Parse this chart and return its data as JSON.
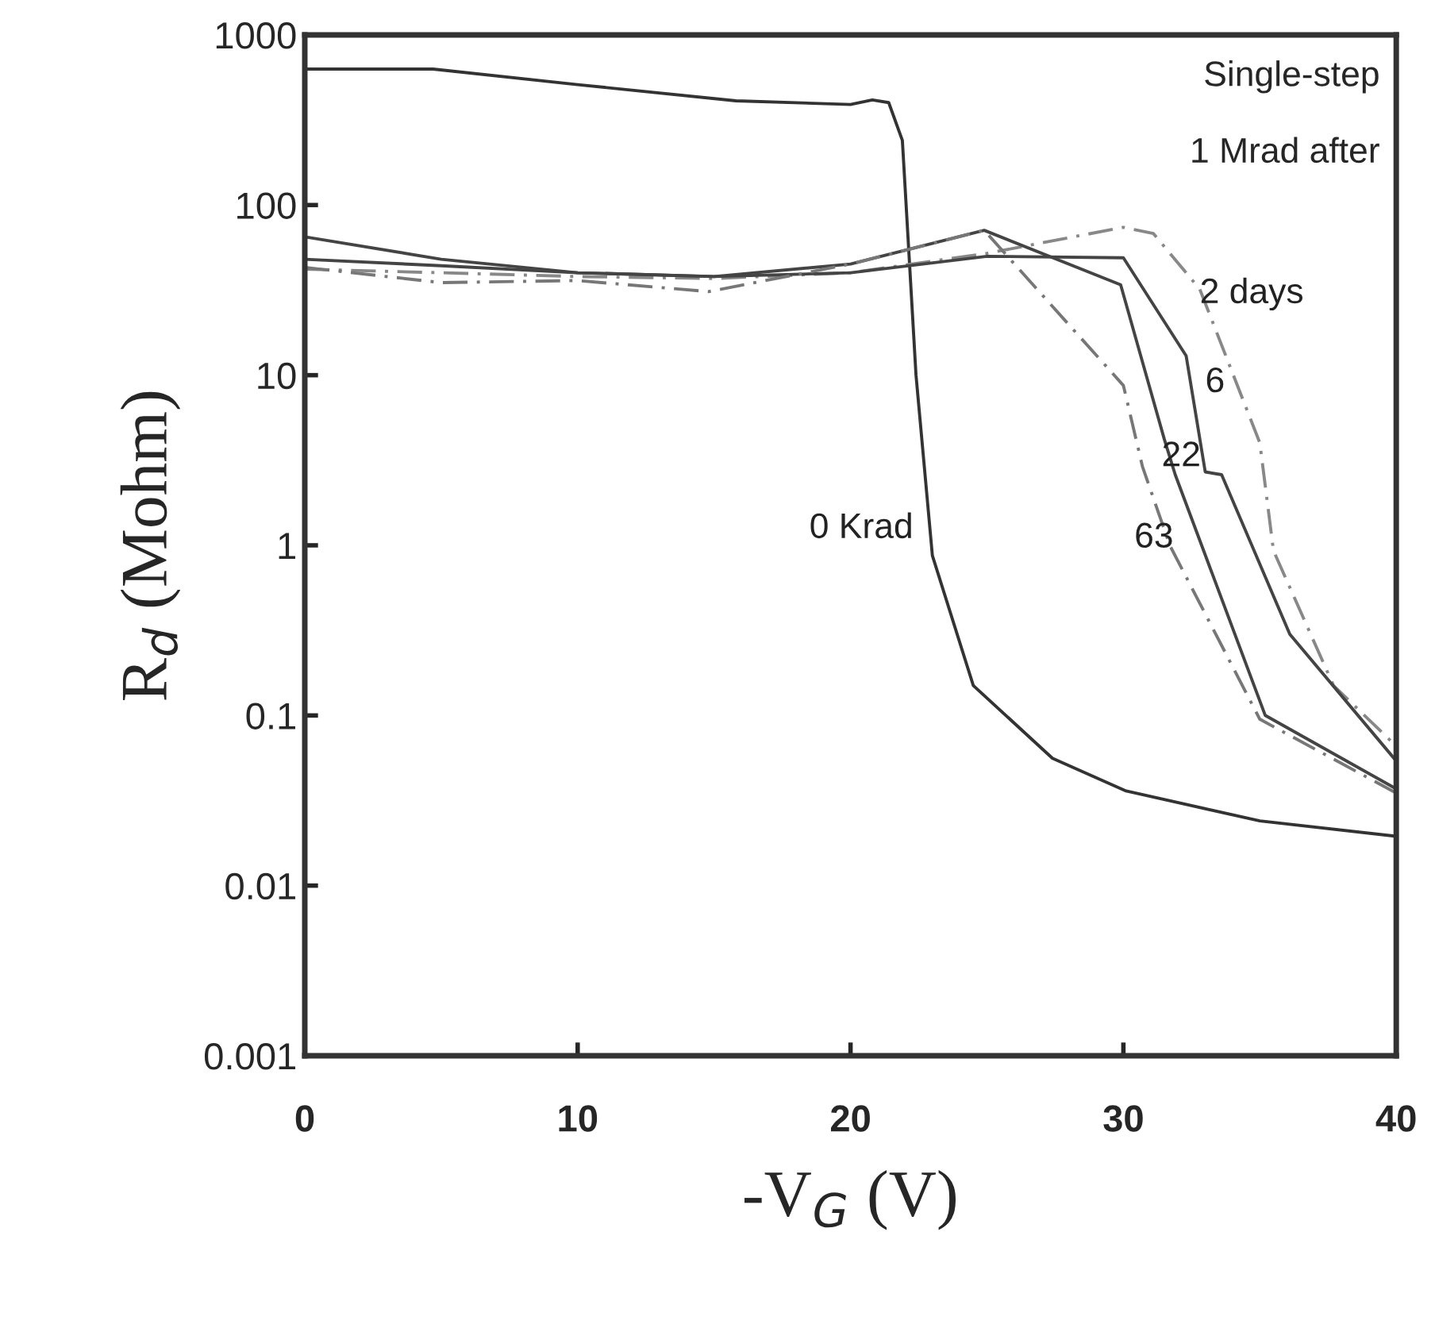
{
  "chart_data": {
    "type": "line",
    "xlabel": "-V$_{G}$ (V)",
    "ylabel": "R$_{d}$ (Mohm)",
    "annotations": [
      "Single-step",
      "1 Mrad after"
    ],
    "log": "y",
    "xlim": [
      0,
      40
    ],
    "ylim": [
      0.001,
      1000
    ],
    "xticks": [
      0,
      10,
      20,
      30,
      40
    ],
    "yticks": [
      0.001,
      0.01,
      0.1,
      1,
      10,
      100,
      1000
    ],
    "grid": false,
    "legend": false,
    "series": [
      {
        "name": "0 Krad",
        "color": "#333333",
        "line_style": "solid",
        "x": [
          0,
          4.7,
          10,
          15.8,
          20,
          20.8,
          21.4,
          21.9,
          22.4,
          23,
          24.5,
          27.4,
          30.1,
          35,
          40
        ],
        "values": [
          630,
          630,
          510,
          410,
          390,
          415,
          400,
          240,
          10,
          0.87,
          0.15,
          0.056,
          0.036,
          0.024,
          0.0195
        ]
      },
      {
        "name": "2 days",
        "color": "#888888",
        "line_style": "dashed",
        "x": [
          0,
          5,
          10,
          15,
          20,
          25,
          30,
          31.1,
          32.8,
          35,
          35.5,
          37.7,
          40
        ],
        "values": [
          42,
          40,
          38,
          37,
          40,
          52,
          74,
          68,
          32,
          4,
          0.93,
          0.15,
          0.066
        ]
      },
      {
        "name": "6",
        "color": "#444444",
        "line_style": "solid",
        "x": [
          0,
          5,
          10,
          15,
          20,
          25,
          30,
          32.3,
          33,
          33.6,
          36.1,
          40
        ],
        "values": [
          48,
          44,
          40,
          38,
          40,
          50,
          49,
          13,
          2.7,
          2.6,
          0.3,
          0.054
        ]
      },
      {
        "name": "22",
        "color": "#444444",
        "line_style": "solid",
        "x": [
          0,
          5,
          10,
          15,
          20,
          24.9,
          29.9,
          31.5,
          31.9,
          35.2,
          40
        ],
        "values": [
          65,
          48,
          40,
          38,
          45,
          71,
          34,
          4.2,
          2.6,
          0.1,
          0.037
        ]
      },
      {
        "name": "63",
        "color": "#777777",
        "line_style": "dashed",
        "x": [
          0,
          5,
          10,
          14.8,
          20,
          24.9,
          30,
          30.7,
          31.7,
          35,
          40
        ],
        "values": [
          43,
          35,
          36,
          31,
          45,
          71,
          8.7,
          2.9,
          1.0,
          0.095,
          0.035
        ]
      }
    ]
  }
}
